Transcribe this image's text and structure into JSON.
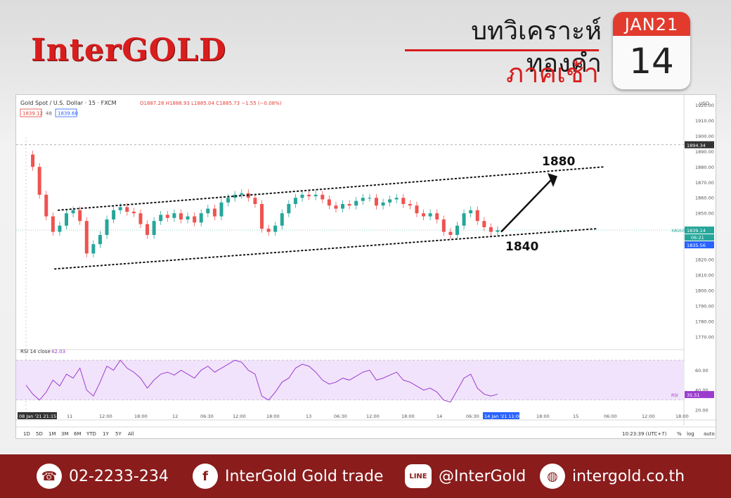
{
  "header": {
    "logo": "InterGOLD",
    "title": "บทวิเคราะห์ทองคำ",
    "subtitle": "ภาคเช้า",
    "calendar": {
      "month": "JAN21",
      "day": "14"
    }
  },
  "chart_data": {
    "type": "line",
    "symbol_title": "Gold Spot / U.S. Dollar · 15 · FXCM",
    "ohlc_text": "O1887.28 H1888.93 L1885.04 C1885.73 −1.55 (−0.08%)",
    "bid": "1839.12",
    "spread": "48",
    "ask": "1839.60",
    "currency": "USD",
    "ylim": [
      1765,
      1922
    ],
    "y_ticks": [
      "1920.00",
      "1910.00",
      "1900.00",
      "1890.00",
      "1880.00",
      "1870.00",
      "1860.00",
      "1850.00",
      "1840.00",
      "1830.00",
      "1820.00",
      "1810.00",
      "1800.00",
      "1790.00",
      "1780.00",
      "1770.00"
    ],
    "y_tick_values": [
      1920,
      1910,
      1900,
      1890,
      1880,
      1870,
      1860,
      1850,
      1840,
      1830,
      1820,
      1810,
      1800,
      1790,
      1780,
      1770
    ],
    "x_ticks": [
      "08 Jan '21  21:15",
      "11",
      "12:00",
      "18:00",
      "12",
      "06:30",
      "12:00",
      "18:00",
      "13",
      "06:30",
      "12:00",
      "18:00",
      "14",
      "06:30",
      "14 Jan '21  11:00",
      "18:00",
      "15",
      "06:00",
      "12:00",
      "18:00"
    ],
    "series": [
      {
        "name": "XAUUSD",
        "x": [
          0,
          1,
          2,
          3,
          4,
          5,
          6,
          7,
          8,
          9,
          10,
          11,
          12,
          13,
          14,
          15,
          16,
          17,
          18,
          19,
          20,
          21,
          22,
          23,
          24,
          25,
          26,
          27,
          28,
          29,
          30,
          31,
          32,
          33,
          34,
          35,
          36,
          37,
          38,
          39,
          40,
          41,
          42,
          43,
          44,
          45,
          46,
          47,
          48,
          49,
          50,
          51,
          52,
          53,
          54,
          55,
          56,
          57,
          58,
          59,
          60,
          61,
          62,
          63,
          64,
          65,
          66,
          67,
          68,
          69,
          70
        ],
        "values": [
          1888,
          1880,
          1862,
          1848,
          1838,
          1842,
          1850,
          1852,
          1845,
          1824,
          1830,
          1836,
          1846,
          1852,
          1854,
          1851,
          1850,
          1843,
          1836,
          1845,
          1849,
          1847,
          1850,
          1846,
          1848,
          1844,
          1850,
          1853,
          1848,
          1857,
          1860,
          1862,
          1863,
          1860,
          1856,
          1840,
          1838,
          1842,
          1850,
          1856,
          1860,
          1862,
          1861,
          1862,
          1859,
          1855,
          1853,
          1856,
          1855,
          1858,
          1860,
          1860,
          1855,
          1857,
          1859,
          1860,
          1856,
          1855,
          1850,
          1848,
          1850,
          1846,
          1838,
          1836,
          1842,
          1850,
          1852,
          1845,
          1841,
          1838,
          1839
        ]
      }
    ],
    "price_labels": {
      "last_tag": "XAUUSD",
      "last": "1839.14",
      "countdown": "06:21",
      "low": "1835.56",
      "crosshair": "1894.34"
    },
    "annotations": {
      "target_high": "1880",
      "target_low": "1840"
    },
    "rsi": {
      "label": "RSI 14 close",
      "value": "42.03",
      "tag": "RSI",
      "last": "35.51",
      "ylim": [
        15,
        75
      ],
      "ticks": [
        "60.00",
        "40.00",
        "20.00"
      ],
      "tick_values": [
        60,
        40,
        20
      ],
      "values": [
        45,
        36,
        30,
        38,
        50,
        44,
        56,
        52,
        62,
        40,
        34,
        48,
        64,
        60,
        70,
        62,
        58,
        52,
        42,
        50,
        56,
        58,
        55,
        60,
        56,
        52,
        60,
        64,
        58,
        62,
        66,
        70,
        68,
        60,
        56,
        34,
        30,
        38,
        48,
        52,
        62,
        66,
        64,
        58,
        50,
        46,
        48,
        52,
        50,
        54,
        58,
        60,
        50,
        52,
        55,
        58,
        50,
        48,
        44,
        40,
        42,
        38,
        30,
        28,
        40,
        52,
        56,
        42,
        36,
        34,
        36
      ]
    },
    "timeframes": [
      "1D",
      "5D",
      "1M",
      "3M",
      "6M",
      "YTD",
      "1Y",
      "5Y",
      "All"
    ],
    "clock": "10:23:39 (UTC+7)",
    "bottom_right": [
      "%",
      "log",
      "auto"
    ]
  },
  "footer": {
    "phone": "02-2233-234",
    "facebook": "InterGold Gold trade",
    "line": "@InterGold",
    "website": "intergold.co.th",
    "line_icon_text": "LINE"
  },
  "colors": {
    "brand_red": "#d91d1d",
    "footer_bg": "#8a1c1c",
    "up": "#26a69a",
    "down": "#ef5350",
    "rsi": "#9c3ccf"
  }
}
